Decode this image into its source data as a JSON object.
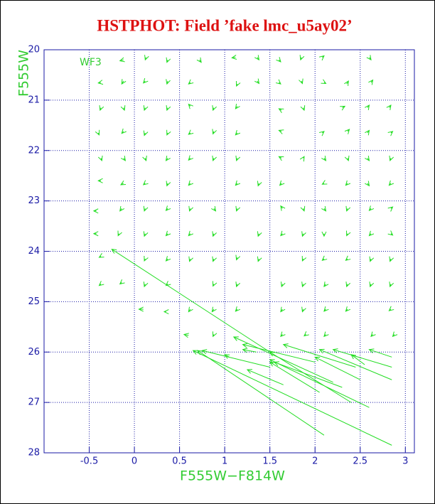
{
  "chart_data": {
    "type": "vector",
    "title": "HSTPHOT: Field ’fake lmc_u5ay02’",
    "annotation": "WF3",
    "x_label": "F555W−F814W",
    "y_label": "F555W",
    "xlim": [
      -1,
      3.1
    ],
    "ylim": [
      28,
      20
    ],
    "xticks": [
      -0.5,
      0,
      0.5,
      1,
      1.5,
      2,
      2.5,
      3
    ],
    "yticks": [
      20,
      21,
      22,
      23,
      24,
      25,
      26,
      27,
      28
    ],
    "grid": true,
    "color": "#22dd22",
    "vectors": [
      [
        -0.12,
        20.2,
        -0.16,
        20.22
      ],
      [
        0.13,
        20.15,
        0.12,
        20.2
      ],
      [
        0.37,
        20.2,
        0.36,
        20.25
      ],
      [
        0.72,
        20.2,
        0.74,
        20.25
      ],
      [
        1.12,
        20.15,
        1.08,
        20.16
      ],
      [
        1.36,
        20.15,
        1.38,
        20.2
      ],
      [
        1.6,
        20.2,
        1.62,
        20.24
      ],
      [
        1.85,
        20.15,
        1.84,
        20.2
      ],
      [
        2.08,
        20.15,
        2.1,
        20.12
      ],
      [
        2.6,
        20.15,
        2.62,
        20.2
      ],
      [
        -0.37,
        20.65,
        -0.4,
        20.66
      ],
      [
        -0.12,
        20.62,
        -0.14,
        20.68
      ],
      [
        0.12,
        20.62,
        0.1,
        20.66
      ],
      [
        0.37,
        20.62,
        0.36,
        20.68
      ],
      [
        0.62,
        20.65,
        0.6,
        20.68
      ],
      [
        1.14,
        20.68,
        1.13,
        20.72
      ],
      [
        1.36,
        20.62,
        1.38,
        20.67
      ],
      [
        1.6,
        20.65,
        1.62,
        20.68
      ],
      [
        1.85,
        20.62,
        1.86,
        20.67
      ],
      [
        2.1,
        20.65,
        2.12,
        20.67
      ],
      [
        2.35,
        20.68,
        2.37,
        20.62
      ],
      [
        2.62,
        20.65,
        2.64,
        20.6
      ],
      [
        -0.37,
        21.15,
        -0.38,
        21.2
      ],
      [
        -0.12,
        21.15,
        -0.11,
        21.2
      ],
      [
        0.12,
        21.15,
        0.11,
        21.2
      ],
      [
        0.37,
        21.15,
        0.36,
        21.2
      ],
      [
        0.62,
        21.12,
        0.6,
        21.08
      ],
      [
        0.88,
        21.15,
        0.87,
        21.2
      ],
      [
        1.14,
        21.12,
        1.12,
        21.17
      ],
      [
        1.63,
        21.2,
        1.6,
        21.17
      ],
      [
        1.87,
        21.15,
        1.88,
        21.2
      ],
      [
        2.3,
        21.15,
        2.33,
        21.12
      ],
      [
        2.58,
        21.15,
        2.6,
        21.1
      ],
      [
        2.82,
        21.15,
        2.84,
        21.1
      ],
      [
        -0.4,
        21.65,
        -0.39,
        21.69
      ],
      [
        -0.12,
        21.62,
        -0.14,
        21.66
      ],
      [
        0.12,
        21.65,
        0.11,
        21.7
      ],
      [
        0.37,
        21.65,
        0.36,
        21.69
      ],
      [
        0.62,
        21.65,
        0.6,
        21.68
      ],
      [
        0.88,
        21.62,
        0.87,
        21.67
      ],
      [
        1.14,
        21.65,
        1.12,
        21.69
      ],
      [
        1.63,
        21.62,
        1.6,
        21.6
      ],
      [
        2.08,
        21.65,
        2.1,
        21.62
      ],
      [
        2.36,
        21.62,
        2.38,
        21.58
      ],
      [
        2.58,
        21.65,
        2.6,
        21.6
      ],
      [
        2.84,
        21.65,
        2.86,
        21.62
      ],
      [
        -0.37,
        22.15,
        -0.36,
        22.2
      ],
      [
        -0.12,
        22.15,
        -0.1,
        22.2
      ],
      [
        0.12,
        22.15,
        0.13,
        22.2
      ],
      [
        0.37,
        22.15,
        0.35,
        22.2
      ],
      [
        0.62,
        22.15,
        0.6,
        22.19
      ],
      [
        0.88,
        22.15,
        0.87,
        22.2
      ],
      [
        1.14,
        22.15,
        1.13,
        22.2
      ],
      [
        1.63,
        22.15,
        1.6,
        22.12
      ],
      [
        1.87,
        22.15,
        1.88,
        22.12
      ],
      [
        2.1,
        22.15,
        2.12,
        22.2
      ],
      [
        2.36,
        22.15,
        2.37,
        22.2
      ],
      [
        2.58,
        22.15,
        2.6,
        22.2
      ],
      [
        2.84,
        22.15,
        2.83,
        22.2
      ],
      [
        -0.37,
        22.6,
        -0.4,
        22.6
      ],
      [
        -0.12,
        22.65,
        -0.15,
        22.68
      ],
      [
        0.12,
        22.65,
        0.1,
        22.68
      ],
      [
        0.37,
        22.65,
        0.36,
        22.7
      ],
      [
        0.62,
        22.65,
        0.6,
        22.69
      ],
      [
        1.14,
        22.65,
        1.12,
        22.69
      ],
      [
        1.38,
        22.65,
        1.37,
        22.7
      ],
      [
        1.63,
        22.65,
        1.61,
        22.69
      ],
      [
        2.1,
        22.65,
        2.08,
        22.67
      ],
      [
        2.36,
        22.65,
        2.34,
        22.69
      ],
      [
        2.58,
        22.65,
        2.6,
        22.7
      ],
      [
        2.84,
        22.65,
        2.82,
        22.69
      ],
      [
        -0.42,
        23.2,
        -0.45,
        23.2
      ],
      [
        -0.14,
        23.15,
        -0.16,
        23.2
      ],
      [
        0.12,
        23.15,
        0.11,
        23.2
      ],
      [
        0.37,
        23.15,
        0.35,
        23.19
      ],
      [
        0.62,
        23.15,
        0.61,
        23.2
      ],
      [
        0.88,
        23.15,
        0.9,
        23.2
      ],
      [
        1.14,
        23.15,
        1.13,
        23.2
      ],
      [
        1.64,
        23.15,
        1.62,
        23.1
      ],
      [
        1.87,
        23.15,
        1.88,
        23.2
      ],
      [
        2.1,
        23.15,
        2.12,
        23.2
      ],
      [
        2.36,
        23.15,
        2.35,
        23.2
      ],
      [
        2.62,
        23.15,
        2.6,
        23.19
      ],
      [
        2.84,
        23.15,
        2.86,
        23.12
      ],
      [
        -0.42,
        23.65,
        -0.45,
        23.65
      ],
      [
        -0.17,
        23.65,
        -0.18,
        23.69
      ],
      [
        0.12,
        23.65,
        0.11,
        23.7
      ],
      [
        0.37,
        23.65,
        0.35,
        23.69
      ],
      [
        0.62,
        23.65,
        0.6,
        23.69
      ],
      [
        0.88,
        23.65,
        0.87,
        23.7
      ],
      [
        1.38,
        23.65,
        1.37,
        23.7
      ],
      [
        1.64,
        23.65,
        1.62,
        23.69
      ],
      [
        1.87,
        23.65,
        1.86,
        23.7
      ],
      [
        2.1,
        23.65,
        2.1,
        23.7
      ],
      [
        2.36,
        23.65,
        2.35,
        23.69
      ],
      [
        2.62,
        23.65,
        2.6,
        23.69
      ],
      [
        2.84,
        23.65,
        2.86,
        23.68
      ],
      [
        -0.37,
        24.1,
        -0.39,
        24.12
      ],
      [
        0.12,
        24.15,
        0.11,
        24.19
      ],
      [
        0.37,
        24.15,
        0.35,
        24.19
      ],
      [
        0.62,
        24.15,
        0.61,
        24.2
      ],
      [
        0.88,
        24.15,
        0.87,
        24.2
      ],
      [
        1.14,
        24.12,
        1.13,
        24.17
      ],
      [
        1.38,
        24.15,
        1.37,
        24.2
      ],
      [
        1.87,
        24.15,
        1.86,
        24.19
      ],
      [
        2.1,
        24.15,
        2.08,
        24.18
      ],
      [
        2.36,
        24.15,
        2.34,
        24.18
      ],
      [
        2.62,
        24.15,
        2.61,
        24.2
      ],
      [
        2.84,
        24.15,
        2.83,
        24.2
      ],
      [
        -0.37,
        24.65,
        -0.39,
        24.68
      ],
      [
        -0.14,
        24.62,
        -0.16,
        24.65
      ],
      [
        0.12,
        24.65,
        0.11,
        24.7
      ],
      [
        0.37,
        24.65,
        0.35,
        24.68
      ],
      [
        0.88,
        24.65,
        0.87,
        24.69
      ],
      [
        1.14,
        24.65,
        1.13,
        24.7
      ],
      [
        1.64,
        24.65,
        1.63,
        24.7
      ],
      [
        1.87,
        24.65,
        1.86,
        24.7
      ],
      [
        2.12,
        24.65,
        2.1,
        24.7
      ],
      [
        2.36,
        24.65,
        2.35,
        24.7
      ],
      [
        2.62,
        24.65,
        2.61,
        24.7
      ],
      [
        2.84,
        24.65,
        2.83,
        24.7
      ],
      [
        0.1,
        25.15,
        0.05,
        25.15
      ],
      [
        0.35,
        25.2,
        0.33,
        25.2
      ],
      [
        0.62,
        25.15,
        0.6,
        25.2
      ],
      [
        0.88,
        25.15,
        0.86,
        25.2
      ],
      [
        1.14,
        25.15,
        1.12,
        25.19
      ],
      [
        1.64,
        25.15,
        1.62,
        25.2
      ],
      [
        1.87,
        25.15,
        1.86,
        25.2
      ],
      [
        2.12,
        25.15,
        2.1,
        25.19
      ],
      [
        2.36,
        25.15,
        2.34,
        25.19
      ],
      [
        2.84,
        25.15,
        2.82,
        25.18
      ],
      [
        0.6,
        25.67,
        0.55,
        25.65
      ],
      [
        0.88,
        25.65,
        0.87,
        25.69
      ],
      [
        1.64,
        25.65,
        1.62,
        25.69
      ],
      [
        1.9,
        25.65,
        1.88,
        25.68
      ],
      [
        2.12,
        25.65,
        2.1,
        25.69
      ],
      [
        2.64,
        25.65,
        2.62,
        25.69
      ],
      [
        2.88,
        25.65,
        2.86,
        25.69
      ],
      [
        1.5,
        26.0,
        -0.25,
        23.96
      ],
      [
        2.85,
        27.85,
        0.65,
        25.97
      ],
      [
        2.1,
        27.65,
        0.7,
        25.97
      ],
      [
        2.2,
        26.6,
        1.1,
        25.7
      ],
      [
        2.0,
        26.2,
        1.2,
        25.85
      ],
      [
        2.4,
        27.0,
        1.5,
        26.0
      ],
      [
        2.6,
        27.1,
        1.5,
        26.15
      ],
      [
        2.3,
        26.7,
        1.55,
        26.2
      ],
      [
        2.45,
        26.3,
        1.65,
        25.85
      ],
      [
        2.85,
        26.55,
        2.05,
        25.95
      ],
      [
        2.5,
        26.55,
        2.0,
        26.1
      ],
      [
        2.85,
        26.3,
        2.2,
        25.95
      ],
      [
        2.85,
        26.1,
        2.6,
        25.95
      ],
      [
        2.55,
        26.25,
        2.4,
        26.05
      ],
      [
        1.65,
        26.65,
        1.25,
        26.35
      ],
      [
        1.5,
        26.3,
        0.75,
        25.97
      ],
      [
        2.05,
        26.8,
        1.5,
        26.2
      ],
      [
        1.05,
        26.1,
        1.0,
        26.05
      ],
      [
        1.35,
        26.0,
        1.2,
        25.95
      ]
    ]
  }
}
